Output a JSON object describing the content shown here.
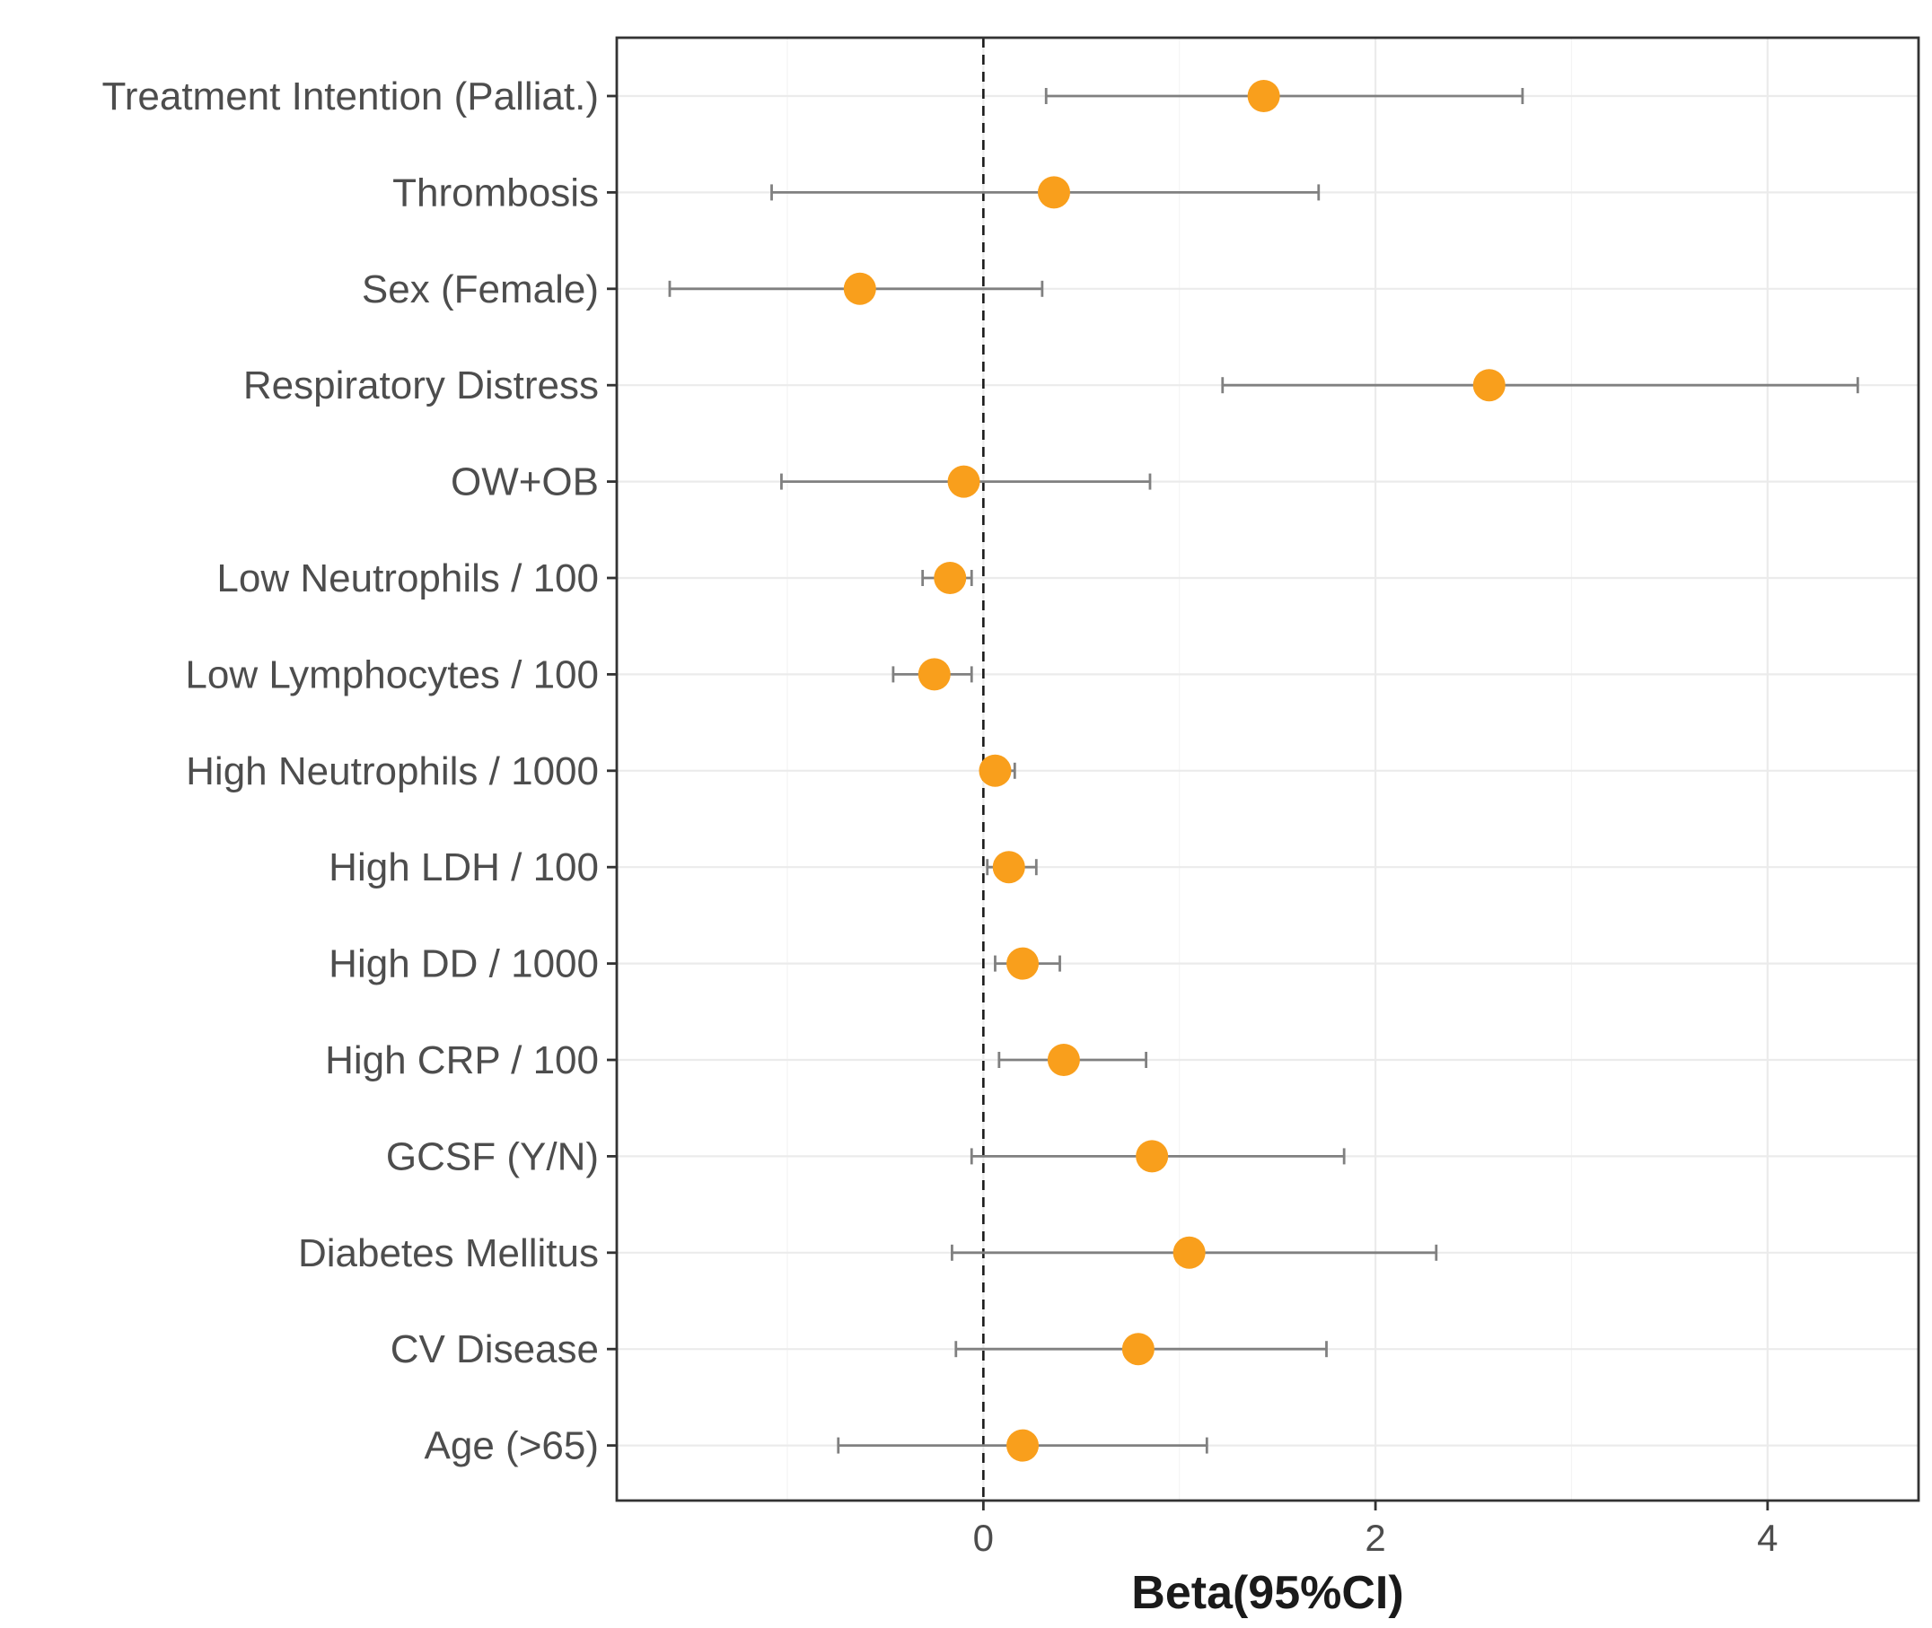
{
  "chart_data": {
    "type": "forest",
    "title": "",
    "xlabel": "Beta(95%CI)",
    "ylabel": "",
    "xlim": [
      -1.87,
      4.77
    ],
    "xticks": [
      0,
      2,
      4
    ],
    "xtick_labels": [
      "0",
      "2",
      "4"
    ],
    "reference_line": 0,
    "grid": true,
    "point_color": "#F99F1C",
    "errorbar_color": "#808080",
    "categories": [
      "Treatment Intention (Palliat.)",
      "Thrombosis",
      "Sex (Female)",
      "Respiratory Distress",
      "OW+OB",
      "Low Neutrophils / 100",
      "Low Lymphocytes / 100",
      "High Neutrophils / 1000",
      "High LDH / 100",
      "High DD / 1000",
      "High CRP / 100",
      "GCSF (Y/N)",
      "Diabetes Mellitus",
      "CV Disease",
      "Age (>65)"
    ],
    "estimate": [
      1.43,
      0.36,
      -0.63,
      2.58,
      -0.1,
      -0.17,
      -0.25,
      0.06,
      0.13,
      0.2,
      0.41,
      0.86,
      1.05,
      0.79,
      0.2
    ],
    "lower": [
      0.32,
      -1.08,
      -1.6,
      1.22,
      -1.03,
      -0.31,
      -0.46,
      0.03,
      0.02,
      0.06,
      0.08,
      -0.06,
      -0.16,
      -0.14,
      -0.74
    ],
    "upper": [
      2.75,
      1.71,
      0.3,
      4.46,
      0.85,
      -0.06,
      -0.06,
      0.16,
      0.27,
      0.39,
      0.83,
      1.84,
      2.31,
      1.75,
      1.14
    ]
  }
}
